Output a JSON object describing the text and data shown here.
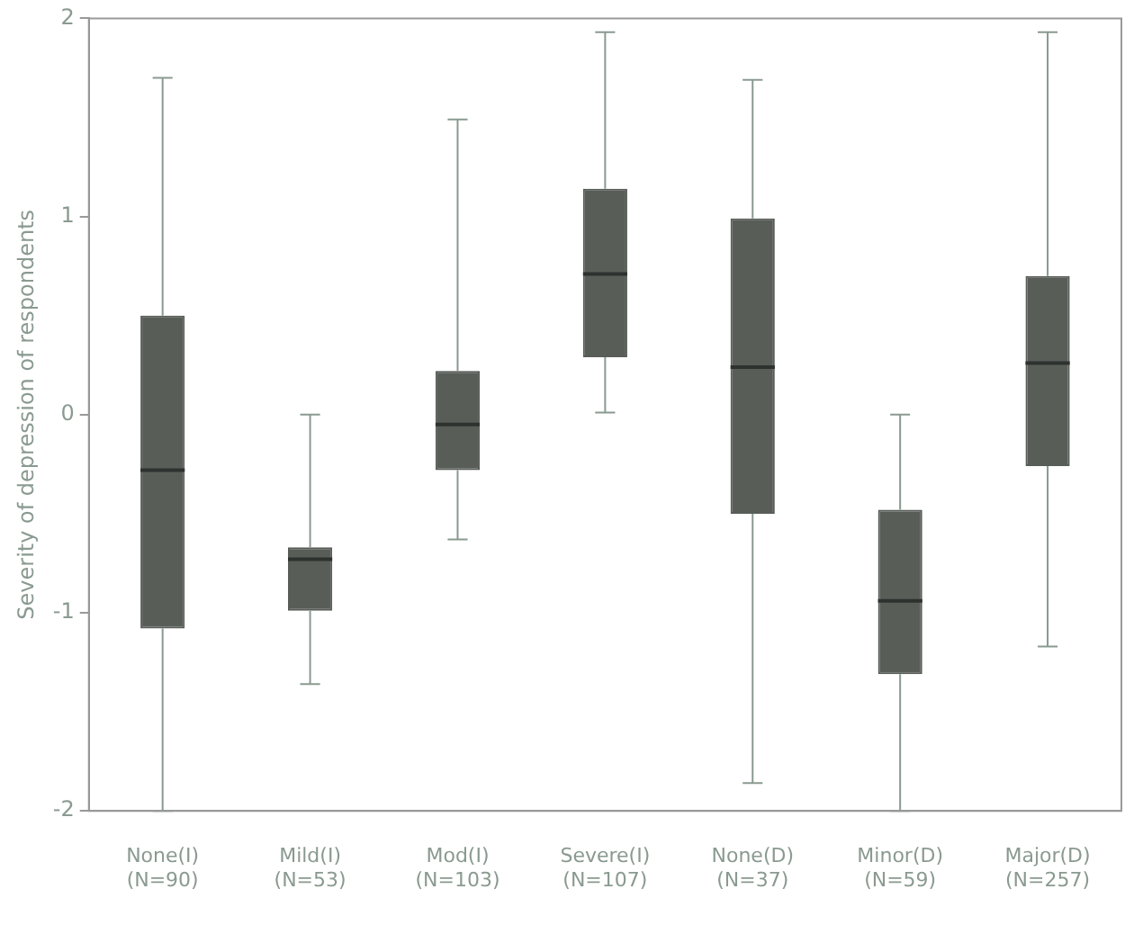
{
  "chart_data": {
    "type": "box",
    "ylabel": "Severity of depression of respondents",
    "categories": [
      "None(I)\n(N=90)",
      "Mild(I)\n(N=53)",
      "Mod(I)\n(N=103)",
      "Severe(I)\n(N=107)",
      "None(D)\n(N=37)",
      "Minor(D)\n(N=59)",
      "Major(D)\n(N=257)"
    ],
    "color": "#585d58",
    "boxes": [
      {
        "low": -2,
        "q1": -1.08,
        "median": -0.28,
        "q3": 0.5,
        "high": 1.7
      },
      {
        "low": -1.36,
        "q1": -0.99,
        "median": -0.73,
        "q3": -0.67,
        "high": 0
      },
      {
        "low": -0.63,
        "q1": -0.28,
        "median": -0.05,
        "q3": 0.22,
        "high": 1.49
      },
      {
        "low": 0.01,
        "q1": 0.29,
        "median": 0.71,
        "q3": 1.14,
        "high": 1.93
      },
      {
        "low": -1.86,
        "q1": -0.5,
        "median": 0.24,
        "q3": 0.99,
        "high": 1.69
      },
      {
        "low": -2,
        "q1": -1.31,
        "median": -0.94,
        "q3": -0.48,
        "high": 0
      },
      {
        "low": -1.17,
        "q1": -0.26,
        "median": 0.26,
        "q3": 0.7,
        "high": 1.93
      }
    ],
    "ylim": [
      -2,
      2
    ],
    "yticks": [
      -2,
      -1,
      0,
      1,
      2
    ],
    "grid": false
  }
}
